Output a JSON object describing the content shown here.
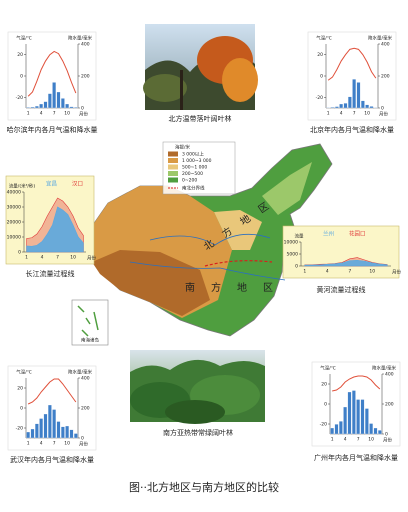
{
  "chart_data": [
    {
      "type": "climate",
      "title": "哈尔滨年内各月气温和降水量",
      "y_label": "气温/℃",
      "y2_label": "降水量/毫米",
      "x_label": "月份",
      "categories": [
        1,
        null,
        null,
        4,
        null,
        null,
        7,
        null,
        null,
        10,
        null,
        null
      ],
      "series": [
        {
          "color": "#e0503a",
          "axis": "y",
          "values": [
            -19,
            -15,
            -5,
            6,
            14,
            20,
            23,
            21,
            14,
            5,
            -6,
            -16
          ]
        },
        {
          "color": "#3f7fc8",
          "axis": "y2",
          "values": [
            4,
            6,
            12,
            25,
            40,
            90,
            160,
            100,
            60,
            25,
            8,
            5
          ]
        }
      ],
      "ylim": [
        -30,
        30
      ],
      "yticks": [
        -20,
        0,
        20
      ],
      "y2lim": [
        0,
        400
      ],
      "y2ticks": [
        0,
        200,
        400
      ]
    },
    {
      "type": "climate",
      "title": "北京年内各月气温和降水量",
      "y_label": "气温/℃",
      "y2_label": "降水量/毫米",
      "x_label": "月份",
      "categories": [
        1,
        null,
        null,
        4,
        null,
        null,
        7,
        null,
        null,
        10,
        null,
        null
      ],
      "series": [
        {
          "color": "#e0503a",
          "axis": "y",
          "values": [
            -4,
            -1,
            6,
            14,
            20,
            25,
            26,
            25,
            20,
            13,
            4,
            -2
          ]
        },
        {
          "color": "#3f7fc8",
          "axis": "y2",
          "values": [
            3,
            5,
            9,
            25,
            30,
            70,
            180,
            160,
            45,
            20,
            10,
            3
          ]
        }
      ],
      "ylim": [
        -30,
        30
      ],
      "yticks": [
        -20,
        0,
        20
      ],
      "y2lim": [
        0,
        400
      ],
      "y2ticks": [
        0,
        200,
        400
      ]
    },
    {
      "type": "climate",
      "title": "武汉年内各月气温和降水量",
      "y_label": "气温/℃",
      "y2_label": "降水量/毫米",
      "x_label": "月份",
      "categories": [
        1,
        null,
        null,
        4,
        null,
        null,
        7,
        null,
        null,
        10,
        null,
        null
      ],
      "series": [
        {
          "color": "#e0503a",
          "axis": "y",
          "values": [
            4,
            6,
            10,
            16,
            21,
            26,
            29,
            29,
            24,
            18,
            12,
            6
          ]
        },
        {
          "color": "#3f7fc8",
          "axis": "y2",
          "values": [
            40,
            60,
            95,
            130,
            160,
            220,
            190,
            110,
            75,
            80,
            55,
            30
          ]
        }
      ],
      "ylim": [
        -30,
        30
      ],
      "yticks": [
        -20,
        0,
        20
      ],
      "y2lim": [
        0,
        400
      ],
      "y2ticks": [
        0,
        200,
        400
      ]
    },
    {
      "type": "climate",
      "title": "广州年内各月气温和降水量",
      "y_label": "气温/℃",
      "y2_label": "降水量/毫米",
      "x_label": "月份",
      "categories": [
        1,
        null,
        null,
        4,
        null,
        null,
        7,
        null,
        null,
        10,
        null,
        null
      ],
      "series": [
        {
          "color": "#e0503a",
          "axis": "y",
          "values": [
            13,
            14,
            17,
            22,
            25,
            27,
            28,
            28,
            27,
            24,
            19,
            15
          ]
        },
        {
          "color": "#3f7fc8",
          "axis": "y2",
          "values": [
            40,
            65,
            85,
            180,
            280,
            290,
            230,
            230,
            170,
            70,
            40,
            25
          ]
        }
      ],
      "ylim": [
        -30,
        30
      ],
      "yticks": [
        -20,
        0,
        20
      ],
      "y2lim": [
        0,
        400
      ],
      "y2ticks": [
        0,
        200,
        400
      ]
    },
    {
      "type": "area",
      "title": "长江流量过程线",
      "y_label": "流量/(米³/秒)",
      "x_label": "月份",
      "categories": [
        1,
        null,
        null,
        4,
        null,
        null,
        7,
        null,
        null,
        10,
        null,
        null
      ],
      "series": [
        {
          "name": "宜昌",
          "color": "#5aa8e0",
          "values": [
            4000,
            3800,
            4500,
            7000,
            12000,
            18000,
            30000,
            28000,
            25000,
            18000,
            10000,
            6000
          ]
        },
        {
          "name": "汉口",
          "color": "#e03a3a",
          "values": [
            9000,
            9500,
            12000,
            17000,
            24000,
            30000,
            36000,
            34000,
            30000,
            24000,
            16000,
            11000
          ]
        }
      ],
      "ylim": [
        0,
        40000
      ],
      "yticks": [
        0,
        10000,
        20000,
        30000,
        40000
      ]
    },
    {
      "type": "area",
      "title": "黄河流量过程线",
      "y_label": "流量",
      "x_label": "月份",
      "categories": [
        1,
        null,
        null,
        4,
        null,
        null,
        7,
        null,
        null,
        10,
        null,
        null
      ],
      "series": [
        {
          "name": "兰州",
          "color": "#5aa8e0",
          "values": [
            400,
            400,
            500,
            700,
            900,
            1300,
            2200,
            2400,
            2000,
            1300,
            800,
            500
          ]
        },
        {
          "name": "花园口",
          "color": "#e03a3a",
          "values": [
            500,
            500,
            700,
            800,
            1000,
            1500,
            3000,
            3500,
            2500,
            1500,
            900,
            600
          ]
        }
      ],
      "ylim": [
        0,
        10000
      ],
      "yticks": [
        0,
        5000,
        10000
      ]
    }
  ],
  "photos": [
    "北方温带落叶阔叶林",
    "南方亚热带常绿阔叶林"
  ],
  "map": {
    "legend_title": "海拔/米",
    "legend": [
      {
        "label": "3 000以上",
        "color": "#b06a2a"
      },
      {
        "label": "1 000~3 000",
        "color": "#d99a45"
      },
      {
        "label": "500~1 000",
        "color": "#e9c77a"
      },
      {
        "label": "200~500",
        "color": "#9cc86a"
      },
      {
        "label": "0~200",
        "color": "#4f9e3f"
      }
    ],
    "boundary": "南北分界线",
    "north": "北方地区",
    "south": "南方地区",
    "inset": "南海诸岛"
  },
  "caption": "图··北方地区与南方地区的比较"
}
